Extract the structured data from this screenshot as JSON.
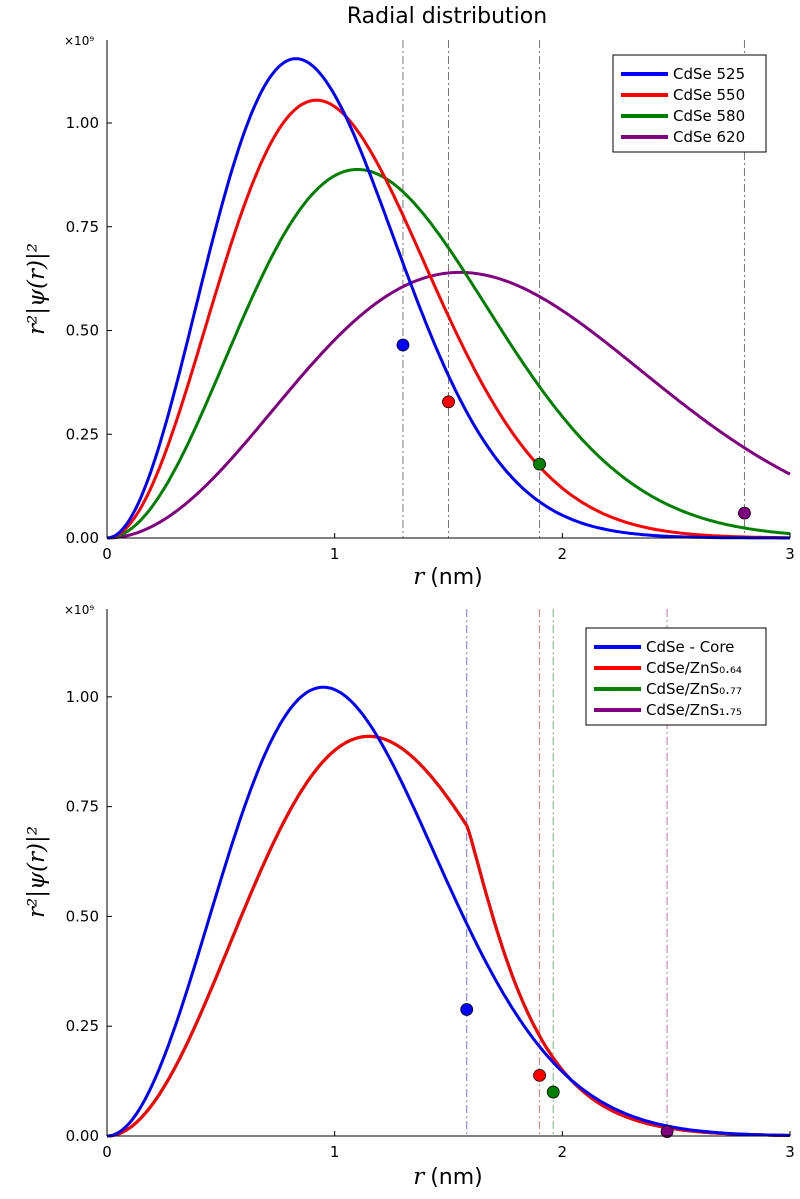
{
  "chart_data": [
    {
      "type": "line",
      "title": "Radial distribution",
      "xlabel_var": "r",
      "xlabel_unit": "(nm)",
      "ylabel": "r²|ψ(r)|²",
      "y_scale_label": "×10⁹",
      "xlim": [
        0,
        3
      ],
      "ylim": [
        0,
        1.2
      ],
      "x_ticks": [
        0,
        1,
        2,
        3
      ],
      "x_tick_labels": [
        "0",
        "1",
        "2",
        "3"
      ],
      "y_ticks": [
        0,
        0.25,
        0.5,
        0.75,
        1.0
      ],
      "y_tick_labels": [
        "0.00",
        "0.25",
        "0.50",
        "0.75",
        "1.00"
      ],
      "grid": false,
      "legend_position": "top-right",
      "series": [
        {
          "name": "CdSe 525",
          "color": "#0000ff",
          "peak_x": 0.83,
          "peak_y": 1.155,
          "radius": 1.3,
          "radius_y": 0.465
        },
        {
          "name": "CdSe 550",
          "color": "#ff0000",
          "peak_x": 0.92,
          "peak_y": 1.055,
          "radius": 1.5,
          "radius_y": 0.328
        },
        {
          "name": "CdSe 580",
          "color": "#008000",
          "peak_x": 1.1,
          "peak_y": 0.888,
          "radius": 1.9,
          "radius_y": 0.178
        },
        {
          "name": "CdSe 620",
          "color": "#800080",
          "peak_x": 1.55,
          "peak_y": 0.64,
          "radius": 2.8,
          "radius_y": 0.06
        }
      ]
    },
    {
      "type": "line",
      "title": "",
      "xlabel_var": "r",
      "xlabel_unit": "(nm)",
      "ylabel": "r²|ψ(r)|²",
      "y_scale_label": "×10⁹",
      "xlim": [
        0,
        3
      ],
      "ylim": [
        0,
        1.2
      ],
      "x_ticks": [
        0,
        1,
        2,
        3
      ],
      "x_tick_labels": [
        "0",
        "1",
        "2",
        "3"
      ],
      "y_ticks": [
        0,
        0.25,
        0.5,
        0.75,
        1.0
      ],
      "y_tick_labels": [
        "0.00",
        "0.25",
        "0.50",
        "0.75",
        "1.00"
      ],
      "grid": false,
      "legend_position": "top-right",
      "series": [
        {
          "name": "CdSe - Core",
          "color": "#0000ff",
          "peak_x": 0.95,
          "peak_y": 1.022,
          "radius": 1.58,
          "radius_y": 0.288,
          "core_radius": 1.58
        },
        {
          "name": "CdSe/ZnS₀.₆₄",
          "color": "#ff0000",
          "peak_x": 1.15,
          "peak_y": 0.91,
          "radius": 1.9,
          "radius_y": 0.138,
          "core_radius": 1.58
        },
        {
          "name": "CdSe/ZnS₀.₇₇",
          "color": "#008000",
          "peak_x": 1.15,
          "peak_y": 0.91,
          "radius": 1.96,
          "radius_y": 0.1,
          "core_radius": 1.58
        },
        {
          "name": "CdSe/ZnS₁.₇₅",
          "color": "#800080",
          "peak_x": 1.15,
          "peak_y": 0.91,
          "radius": 2.46,
          "radius_y": 0.01,
          "core_radius": 1.58
        }
      ]
    }
  ]
}
